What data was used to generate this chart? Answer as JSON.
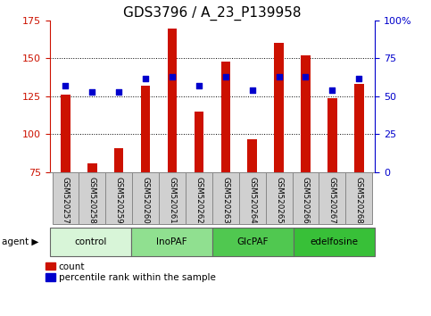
{
  "title": "GDS3796 / A_23_P139958",
  "samples": [
    "GSM520257",
    "GSM520258",
    "GSM520259",
    "GSM520260",
    "GSM520261",
    "GSM520262",
    "GSM520263",
    "GSM520264",
    "GSM520265",
    "GSM520266",
    "GSM520267",
    "GSM520268"
  ],
  "counts": [
    126,
    81,
    91,
    132,
    170,
    115,
    148,
    97,
    160,
    152,
    124,
    133
  ],
  "percentiles": [
    57,
    53,
    53,
    62,
    63,
    57,
    63,
    54,
    63,
    63,
    54,
    62
  ],
  "groups": [
    {
      "label": "control",
      "start": 0,
      "end": 3,
      "color": "#d8f5d8"
    },
    {
      "label": "InoPAF",
      "start": 3,
      "end": 6,
      "color": "#90e090"
    },
    {
      "label": "GlcPAF",
      "start": 6,
      "end": 9,
      "color": "#50c850"
    },
    {
      "label": "edelfosine",
      "start": 9,
      "end": 12,
      "color": "#38c038"
    }
  ],
  "ylim_left": [
    75,
    175
  ],
  "ylim_right": [
    0,
    100
  ],
  "yticks_left": [
    75,
    100,
    125,
    150,
    175
  ],
  "yticks_right": [
    0,
    25,
    50,
    75,
    100
  ],
  "ytick_labels_right": [
    "0",
    "25",
    "50",
    "75",
    "100%"
  ],
  "bar_color": "#cc1100",
  "marker_color": "#0000cc",
  "bar_width": 0.35,
  "legend_count": "count",
  "legend_percentile": "percentile rank within the sample",
  "background_plot": "#ffffff",
  "background_xticklabels": "#d0d0d0",
  "grid_color": "#000000",
  "title_fontsize": 11,
  "tick_fontsize": 8
}
